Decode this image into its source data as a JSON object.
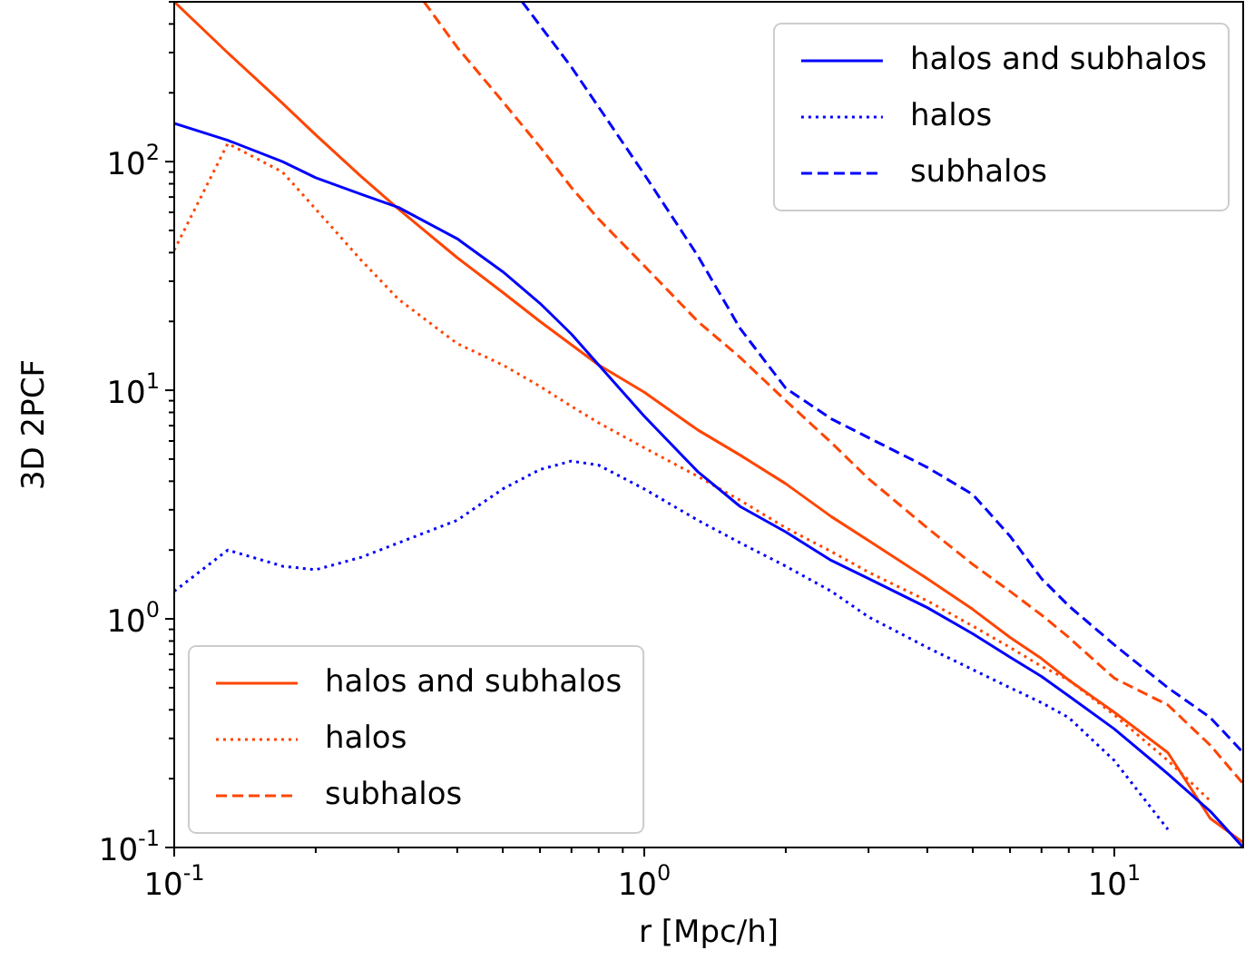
{
  "chart_data": {
    "type": "line",
    "xlabel": "r [Mpc/h]",
    "ylabel": "3D 2PCF",
    "log": "xy",
    "grid": false,
    "legend": [
      "top right",
      "bottom left"
    ],
    "xlim": [
      0.1,
      18.8
    ],
    "ylim": [
      0.1,
      500
    ],
    "xticks": [
      {
        "value": 0.1,
        "label": "10$^{-1}$"
      },
      {
        "value": 1,
        "label": "10$^{0}$"
      },
      {
        "value": 10,
        "label": "10$^{1}$"
      }
    ],
    "yticks": [
      {
        "value": 0.1,
        "label": "10$^{-1}$"
      },
      {
        "value": 1,
        "label": "10$^{0}$"
      },
      {
        "value": 10,
        "label": "10$^{1}$"
      },
      {
        "value": 100,
        "label": "10$^{2}$"
      }
    ],
    "x": [
      0.1,
      0.13,
      0.17,
      0.2,
      0.25,
      0.3,
      0.4,
      0.5,
      0.6,
      0.7,
      0.8,
      1,
      1.3,
      1.6,
      2,
      2.5,
      3,
      4,
      5,
      6,
      7,
      8,
      10,
      13,
      16,
      18.8
    ],
    "series": [
      {
        "name": "halos and subhalos",
        "color": "#0000ff",
        "line_style": "solid",
        "values": [
          147,
          124,
          100,
          85,
          72,
          63,
          46,
          33,
          24,
          17.6,
          12.9,
          7.7,
          4.4,
          3.1,
          2.4,
          1.8,
          1.5,
          1.12,
          0.86,
          0.68,
          0.56,
          0.46,
          0.33,
          0.21,
          0.144,
          0.1
        ]
      },
      {
        "name": "halos",
        "color": "#0000ff",
        "line_style": "dotted",
        "values": [
          1.32,
          2.0,
          1.7,
          1.64,
          1.86,
          2.15,
          2.7,
          3.7,
          4.5,
          4.9,
          4.7,
          3.7,
          2.7,
          2.15,
          1.7,
          1.32,
          1.02,
          0.75,
          0.6,
          0.5,
          0.43,
          0.37,
          0.24,
          0.12,
          null,
          null
        ]
      },
      {
        "name": "subhalos",
        "color": "#0000ff",
        "line_style": "dashed",
        "x": [
          0.55,
          0.6,
          0.7,
          0.8,
          1,
          1.3,
          1.6,
          2,
          2.5,
          3,
          4,
          5,
          6,
          7,
          8,
          10,
          13,
          16,
          18.8
        ],
        "values": [
          500,
          394,
          259,
          173,
          88,
          38.7,
          18.6,
          10.2,
          7.5,
          6.2,
          4.6,
          3.5,
          2.3,
          1.5,
          1.14,
          0.77,
          0.5,
          0.37,
          0.26
        ]
      },
      {
        "name": "halos and subhalos",
        "color": "#ff4500",
        "line_style": "solid",
        "values": [
          500,
          299,
          180,
          131,
          86,
          62,
          38,
          26.8,
          20,
          15.8,
          12.9,
          9.8,
          6.7,
          5.2,
          3.9,
          2.8,
          2.2,
          1.5,
          1.1,
          0.83,
          0.67,
          0.54,
          0.39,
          0.26,
          0.134,
          0.105
        ]
      },
      {
        "name": "halos",
        "color": "#ff4500",
        "line_style": "dotted",
        "values": [
          41,
          120,
          90,
          62,
          37,
          25,
          16,
          12.9,
          10.4,
          8.5,
          7.2,
          5.6,
          4.2,
          3.3,
          2.5,
          1.97,
          1.6,
          1.2,
          0.93,
          0.75,
          0.62,
          0.54,
          0.38,
          0.24,
          0.16,
          null
        ]
      },
      {
        "name": "subhalos",
        "color": "#ff4500",
        "line_style": "dashed",
        "x": [
          0.34,
          0.4,
          0.5,
          0.6,
          0.7,
          0.8,
          1,
          1.3,
          1.6,
          2,
          2.5,
          3,
          4,
          5,
          6,
          7,
          8,
          10,
          13,
          16,
          18.8
        ],
        "values": [
          500,
          316,
          183,
          116,
          77,
          56,
          35,
          20,
          13.9,
          9,
          5.9,
          4.1,
          2.5,
          1.73,
          1.32,
          1.04,
          0.83,
          0.55,
          0.42,
          0.28,
          0.19
        ]
      }
    ]
  }
}
